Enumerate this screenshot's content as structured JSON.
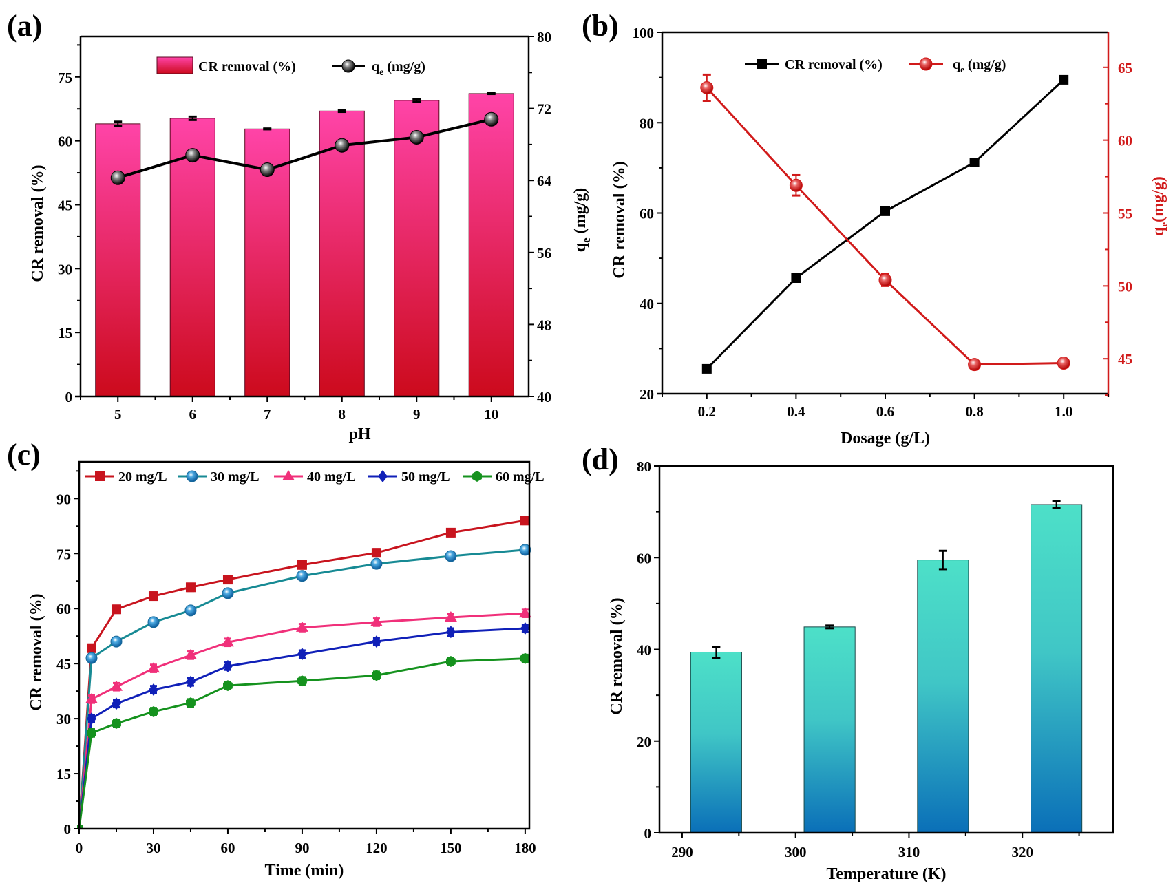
{
  "figure": {
    "panels": [
      "(a)",
      "(b)",
      "(c)",
      "(d)"
    ]
  },
  "chart_data": [
    {
      "id": "a",
      "panel_label": "(a)",
      "type": "bar",
      "title": "",
      "xlabel": "pH",
      "ylabel": "CR removal (%)",
      "y2label_main": "q",
      "y2label_sub": "e",
      "y2label_unit": " (mg/g)",
      "categories": [
        "5",
        "6",
        "7",
        "8",
        "9",
        "10"
      ],
      "x": [
        5,
        6,
        7,
        8,
        9,
        10
      ],
      "xlim": [
        4.5,
        10.5
      ],
      "ylim": [
        0,
        84.5
      ],
      "y2lim": [
        40,
        80
      ],
      "yticks": [
        0,
        15,
        30,
        45,
        60,
        75
      ],
      "y2ticks": [
        40,
        48,
        56,
        64,
        72,
        80
      ],
      "grid": false,
      "legend_position": "top-center",
      "series": [
        {
          "name": "CR removal (%)",
          "kind": "bar",
          "axis": "left",
          "values": [
            64.0,
            65.3,
            62.8,
            67.0,
            69.5,
            71.1
          ],
          "errors": [
            0.5,
            0.4,
            0.1,
            0.2,
            0.3,
            0.1
          ],
          "color_top": "#ff44a8",
          "color_bottom": "#cc0a1c"
        },
        {
          "name": "q",
          "name_sub": "e",
          "name_unit": " (mg/g)",
          "kind": "line",
          "axis": "right",
          "marker": "sphere",
          "values": [
            64.3,
            66.8,
            65.2,
            67.9,
            68.8,
            70.8
          ],
          "color": "#000000"
        }
      ]
    },
    {
      "id": "b",
      "panel_label": "(b)",
      "type": "line",
      "title": "",
      "xlabel": "Dosage (g/L)",
      "ylabel": "CR removal (%)",
      "y2label_main": "q",
      "y2label_sub": "e",
      "y2label_unit": "(mg/g)",
      "x": [
        0.2,
        0.4,
        0.6,
        0.8,
        1.0
      ],
      "xticks": [
        "0.2",
        "0.4",
        "0.6",
        "0.8",
        "1.0"
      ],
      "xlim": [
        0.1,
        1.1
      ],
      "ylim": [
        20,
        100
      ],
      "y2lim": [
        42.6,
        67.4
      ],
      "yticks": [
        20,
        40,
        60,
        80,
        100
      ],
      "y2ticks": [
        45,
        50,
        55,
        60,
        65
      ],
      "grid": false,
      "legend_position": "top-right",
      "series": [
        {
          "name": "CR removal (%)",
          "axis": "left",
          "marker": "square",
          "color": "#000000",
          "values": [
            25.5,
            45.6,
            60.4,
            71.2,
            89.5
          ],
          "errors": [
            0.3,
            0.5,
            0.4,
            0.4,
            0.5
          ]
        },
        {
          "name": "q",
          "name_sub": "e",
          "name_unit": " (mg/g)",
          "axis": "right",
          "marker": "sphere",
          "color": "#d11a1a",
          "values": [
            63.6,
            56.9,
            50.4,
            44.6,
            44.7
          ],
          "errors": [
            0.9,
            0.7,
            0.4,
            0.2,
            0.2
          ]
        }
      ]
    },
    {
      "id": "c",
      "panel_label": "(c)",
      "type": "line",
      "title": "",
      "xlabel": "Time (min)",
      "ylabel": "CR removal (%)",
      "x": [
        0,
        5,
        15,
        30,
        45,
        60,
        90,
        120,
        150,
        180
      ],
      "xticks": [
        0,
        30,
        60,
        90,
        120,
        150,
        180
      ],
      "xlim": [
        0,
        181.7
      ],
      "ylim": [
        0,
        100
      ],
      "yticks": [
        0,
        15,
        30,
        45,
        60,
        75,
        90
      ],
      "grid": false,
      "legend_position": "top",
      "series": [
        {
          "name": "20 mg/L",
          "marker": "square",
          "color": "#c8141e",
          "values": [
            0,
            49.2,
            59.8,
            63.4,
            65.8,
            67.9,
            71.9,
            75.2,
            80.7,
            84.0
          ]
        },
        {
          "name": "30 mg/L",
          "marker": "sphere",
          "color": "#178a94",
          "marker_color": "#2a8cc4",
          "values": [
            0,
            46.5,
            51.0,
            56.3,
            59.5,
            64.2,
            68.9,
            72.2,
            74.3,
            76.0
          ]
        },
        {
          "name": "40 mg/L",
          "marker": "triangle",
          "color": "#f0307a",
          "values": [
            0,
            35.3,
            38.7,
            43.7,
            47.3,
            50.8,
            54.8,
            56.3,
            57.6,
            58.7
          ]
        },
        {
          "name": "50 mg/L",
          "marker": "diamond",
          "color": "#1020b8",
          "values": [
            0,
            30.0,
            34.1,
            37.9,
            40.0,
            44.3,
            47.6,
            51.0,
            53.6,
            54.6
          ]
        },
        {
          "name": "60 mg/L",
          "marker": "hexagon",
          "color": "#15921e",
          "values": [
            0,
            26.1,
            28.7,
            31.9,
            34.3,
            39.0,
            40.3,
            41.8,
            45.6,
            46.4
          ]
        }
      ]
    },
    {
      "id": "d",
      "panel_label": "(d)",
      "type": "bar",
      "title": "",
      "xlabel": "Temperature (K)",
      "ylabel": "CR removal (%)",
      "x": [
        293,
        303,
        313,
        323
      ],
      "xticks": [
        290,
        300,
        310,
        320
      ],
      "xlim": [
        288,
        328
      ],
      "ylim": [
        0,
        80
      ],
      "yticks": [
        0,
        20,
        40,
        60,
        80
      ],
      "grid": false,
      "series": [
        {
          "name": "CR removal (%)",
          "values": [
            39.4,
            44.9,
            59.5,
            71.6
          ],
          "errors": [
            1.2,
            0.3,
            2.0,
            0.8
          ],
          "color_top": "#4de0c8",
          "color_bottom": "#0a6fb8"
        }
      ]
    }
  ]
}
